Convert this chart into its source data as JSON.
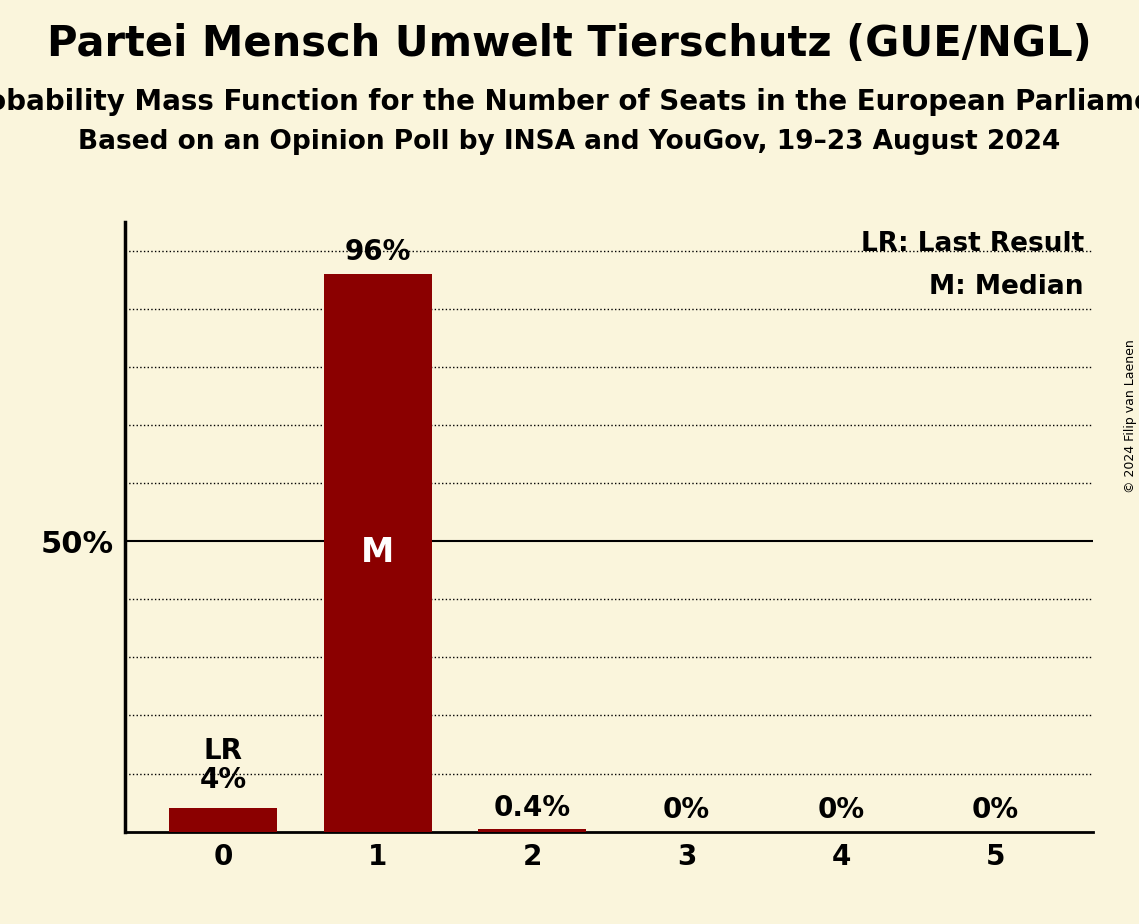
{
  "title": "Partei Mensch Umwelt Tierschutz (GUE/NGL)",
  "subtitle1": "Probability Mass Function for the Number of Seats in the European Parliament",
  "subtitle2": "Based on an Opinion Poll by INSA and YouGov, 19–23 August 2024",
  "copyright": "© 2024 Filip van Laenen",
  "categories": [
    0,
    1,
    2,
    3,
    4,
    5
  ],
  "values": [
    0.04,
    0.96,
    0.004,
    0.0,
    0.0,
    0.0
  ],
  "bar_color": "#8B0000",
  "background_color": "#FAF5DC",
  "bar_labels": [
    "4%",
    "96%",
    "0.4%",
    "0%",
    "0%",
    "0%"
  ],
  "legend_lr": "LR: Last Result",
  "legend_m": "M: Median",
  "ytick_label": "50%",
  "ytick_value": 0.5,
  "ylim": [
    0,
    1.05
  ],
  "title_fontsize": 30,
  "subtitle1_fontsize": 20,
  "subtitle2_fontsize": 19,
  "bar_label_fontsize": 20,
  "tick_fontsize": 20,
  "annotation_fontsize": 24,
  "legend_fontsize": 19,
  "ytick_fontsize": 22,
  "copyright_fontsize": 9,
  "grid_positions": [
    0.1,
    0.2,
    0.3,
    0.4,
    0.5,
    0.6,
    0.7,
    0.8,
    0.9,
    1.0
  ]
}
